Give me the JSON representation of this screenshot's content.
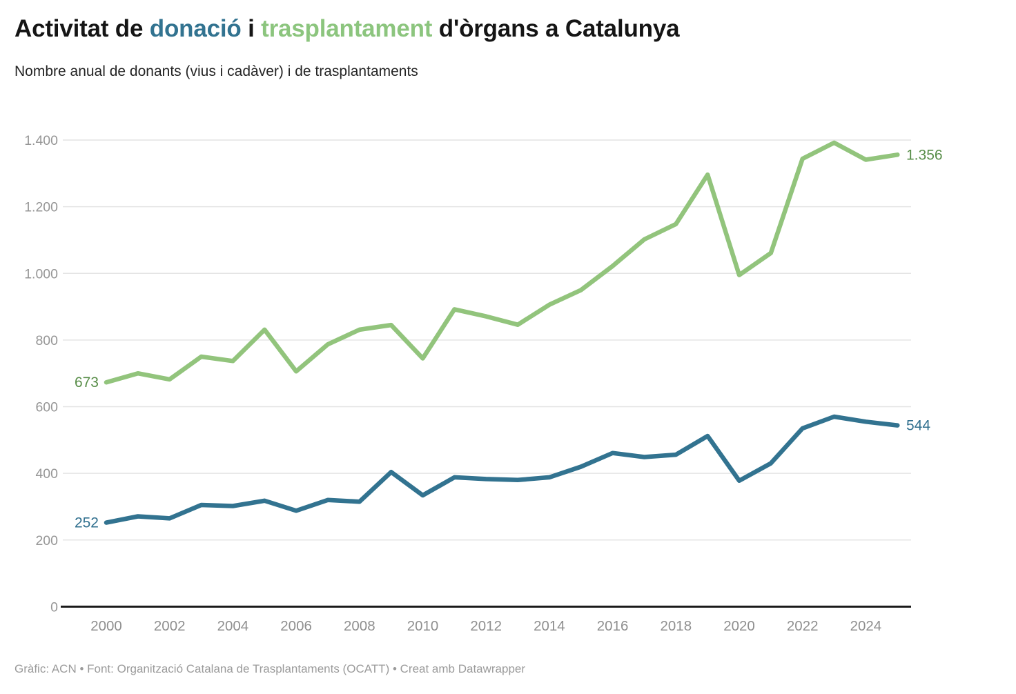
{
  "title": {
    "part1": "Activitat de ",
    "part2": "donació",
    "part3": " i ",
    "part4": "trasplantament",
    "part5": " d'òrgans a Catalunya"
  },
  "subtitle": "Nombre anual de donants (vius i cadàver) i de trasplantaments",
  "footer": "Gràfic: ACN • Font: Organització Catalana de Trasplantaments (OCATT) • Creat amb Datawrapper",
  "colors": {
    "accent_teal": "#327390",
    "accent_green": "#8cc57e",
    "teal_line": "#327390",
    "green_line": "#92c47c",
    "green_label": "#568c46",
    "teal_label": "#31708f",
    "axis_tick_label": "#969696",
    "gridline": "#e4e4e4",
    "axis_line": "#1a1a1a",
    "title_text": "#151515",
    "subtitle_text": "#242424",
    "footer_text": "#9b9b9b",
    "background": "#ffffff"
  },
  "chart_data": {
    "type": "line",
    "title": "Activitat de donació i trasplantament d'òrgans a Catalunya",
    "subtitle": "Nombre anual de donants (vius i cadàver) i de trasplantaments",
    "x": [
      2000,
      2001,
      2002,
      2003,
      2004,
      2005,
      2006,
      2007,
      2008,
      2009,
      2010,
      2011,
      2012,
      2013,
      2014,
      2015,
      2016,
      2017,
      2018,
      2019,
      2020,
      2021,
      2022,
      2023,
      2024,
      2025
    ],
    "series": [
      {
        "name": "trasplantaments",
        "color": "#92c47c",
        "label_color": "#568c46",
        "start_label": "673",
        "end_label": "1.356",
        "values": [
          673,
          700,
          682,
          750,
          737,
          831,
          706,
          787,
          831,
          845,
          745,
          892,
          871,
          846,
          906,
          950,
          1022,
          1102,
          1148,
          1296,
          995,
          1061,
          1344,
          1392,
          1341,
          1356
        ]
      },
      {
        "name": "donants (vius i cadàver)",
        "color": "#327390",
        "label_color": "#31708f",
        "start_label": "252",
        "end_label": "544",
        "values": [
          252,
          271,
          265,
          305,
          302,
          318,
          288,
          320,
          315,
          404,
          334,
          388,
          383,
          380,
          388,
          420,
          461,
          449,
          456,
          512,
          378,
          430,
          535,
          570,
          555,
          544
        ]
      }
    ],
    "ylim": [
      0,
      1400
    ],
    "yticks": [
      {
        "value": 0,
        "label": "0"
      },
      {
        "value": 200,
        "label": "200"
      },
      {
        "value": 400,
        "label": "400"
      },
      {
        "value": 600,
        "label": "600"
      },
      {
        "value": 800,
        "label": "800"
      },
      {
        "value": 1000,
        "label": "1.000"
      },
      {
        "value": 1200,
        "label": "1.200"
      },
      {
        "value": 1400,
        "label": "1.400"
      }
    ],
    "xticks": [
      {
        "value": 2000,
        "label": "2000"
      },
      {
        "value": 2002,
        "label": "2002"
      },
      {
        "value": 2004,
        "label": "2004"
      },
      {
        "value": 2006,
        "label": "2006"
      },
      {
        "value": 2008,
        "label": "2008"
      },
      {
        "value": 2010,
        "label": "2010"
      },
      {
        "value": 2012,
        "label": "2012"
      },
      {
        "value": 2014,
        "label": "2014"
      },
      {
        "value": 2016,
        "label": "2016"
      },
      {
        "value": 2018,
        "label": "2018"
      },
      {
        "value": 2020,
        "label": "2020"
      },
      {
        "value": 2022,
        "label": "2022"
      },
      {
        "value": 2024,
        "label": "2024"
      }
    ],
    "grid": "horizontal gridlines on",
    "legend": "none (series colors referenced by title words)"
  }
}
